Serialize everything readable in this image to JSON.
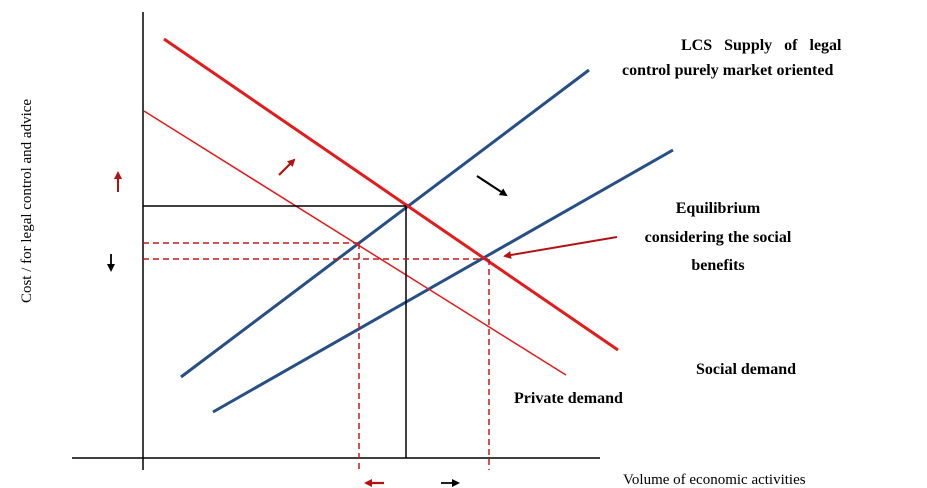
{
  "labels": {
    "lcs_line1": "LCS   Supply   of   legal",
    "lcs_line2": "control purely market oriented",
    "equilibrium_line1": "Equilibrium",
    "equilibrium_line2": "considering the social",
    "equilibrium_line3": "benefits",
    "social_demand": "Social demand",
    "private_demand": "Private demand",
    "y_axis": "Cost / for legal control and advice",
    "x_axis": "Volume of economic activities"
  },
  "colors": {
    "supply_lines": "#254f86",
    "demand_lines": "#e31b1b",
    "dashed_guides": "#c41a1a",
    "axes": "#000000",
    "arrow_red": "#b31212",
    "arrow_black": "#000000"
  }
}
